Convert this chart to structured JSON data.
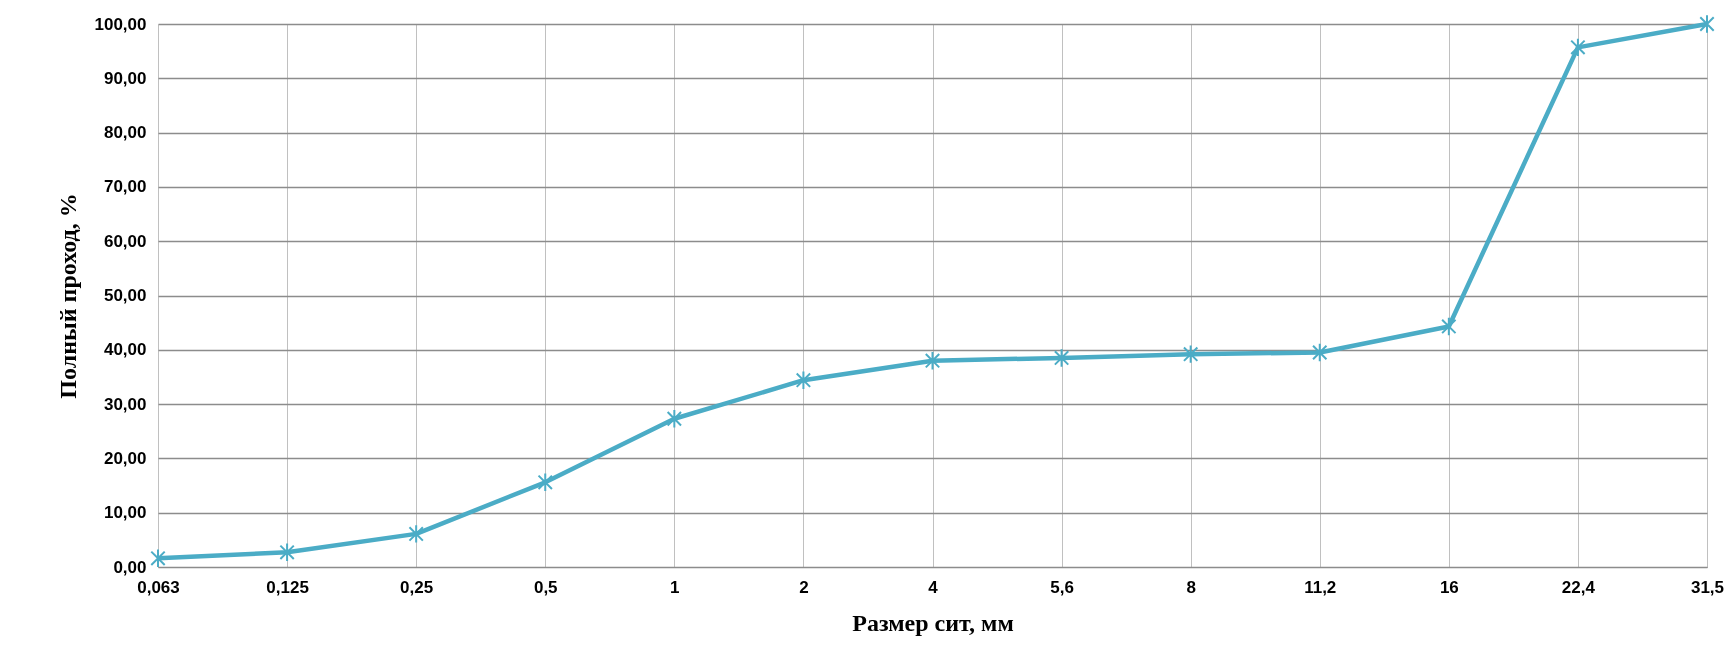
{
  "chart_data": {
    "type": "line",
    "xlabel": "Размер сит, мм",
    "ylabel": "Полный  проход, %",
    "categories": [
      "0,063",
      "0,125",
      "0,25",
      "0,5",
      "1",
      "2",
      "4",
      "5,6",
      "8",
      "11,2",
      "16",
      "22,4",
      "31,5"
    ],
    "series": [
      {
        "color": "#4bacc6",
        "values": [
          1.6,
          2.7,
          6.1,
          15.6,
          27.3,
          34.4,
          38.0,
          38.5,
          39.2,
          39.5,
          44.3,
          95.7,
          100
        ]
      }
    ],
    "ylim": [
      0,
      100
    ],
    "yticks": [
      {
        "value": 0,
        "label": "0,00"
      },
      {
        "value": 10,
        "label": "10,00"
      },
      {
        "value": 20,
        "label": "20,00"
      },
      {
        "value": 30,
        "label": "30,00"
      },
      {
        "value": 40,
        "label": "40,00"
      },
      {
        "value": 50,
        "label": "50,00"
      },
      {
        "value": 60,
        "label": "60,00"
      },
      {
        "value": 70,
        "label": "70,00"
      },
      {
        "value": 80,
        "label": "80,00"
      },
      {
        "value": 90,
        "label": "90,00"
      },
      {
        "value": 100,
        "label": "100,00"
      }
    ],
    "grid": true,
    "marker": "cross"
  }
}
